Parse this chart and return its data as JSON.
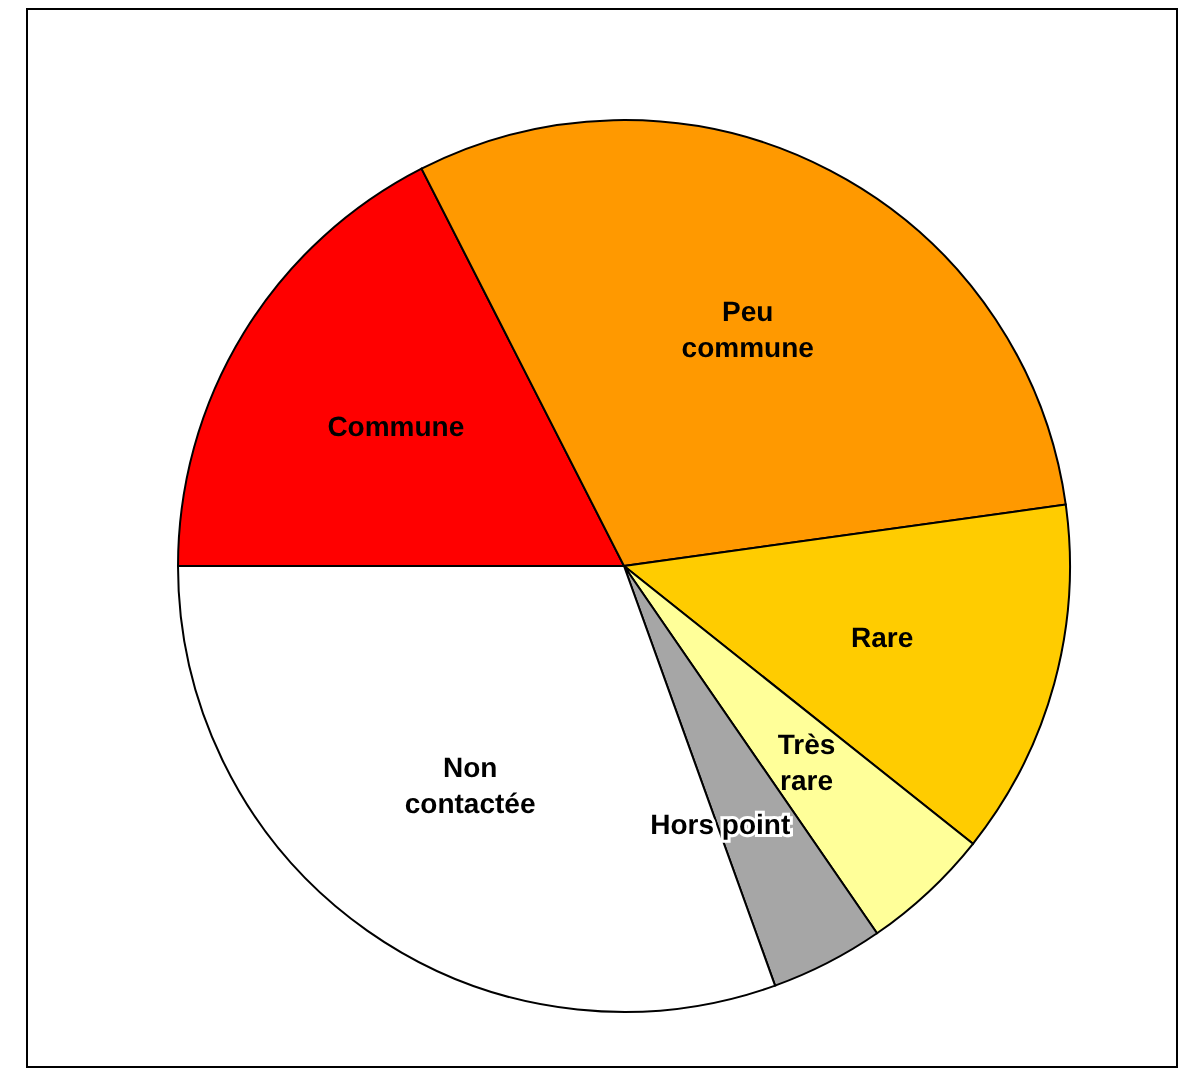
{
  "chart_data": {
    "type": "pie",
    "categories": [
      "Commune",
      "Peu commune",
      "Rare",
      "Très rare",
      "Hors point",
      "Non contactée"
    ],
    "values": [
      17.5,
      30.3,
      12.9,
      4.7,
      4.1,
      30.5
    ],
    "colors": [
      "#ff0000",
      "#ff9900",
      "#ffcc00",
      "#ffff99",
      "#a6a6a6",
      "#ffffff"
    ],
    "legend": false
  }
}
